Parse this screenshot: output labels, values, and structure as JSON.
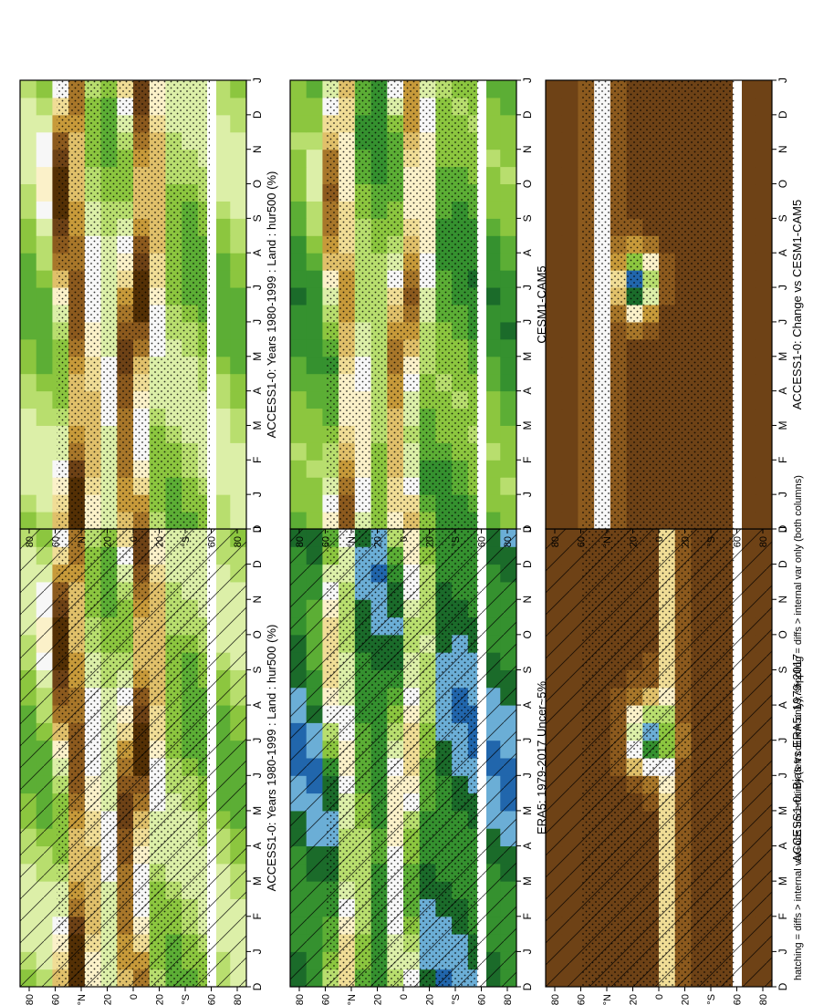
{
  "footer_note": "hatching = diffs > internal var+obs uncertainty (left column only); stippling = diffs > internal var only (both columns)",
  "month_labels": [
    "D",
    "J",
    "F",
    "M",
    "A",
    "M",
    "J",
    "J",
    "A",
    "S",
    "O",
    "N",
    "D",
    "J"
  ],
  "latitude_labels": [
    "80",
    "60",
    "°N",
    "20",
    "0",
    "20",
    "°S",
    "60",
    "80"
  ],
  "colorbars": {
    "absolute": {
      "labels": [
        "120",
        "110",
        "100",
        "90",
        "80",
        "70",
        "60",
        "50",
        "40",
        "30",
        "20"
      ],
      "colors": [
        "#2166ac",
        "#6baed6",
        "#1b6b2a",
        "#35912f",
        "#5cae35",
        "#8cc63f",
        "#b8de6e",
        "#dcefa8",
        "#f7f7f7",
        "#fbf1c9",
        "#f0dd96",
        "#e0c06a",
        "#c79a3a",
        "#a8772a",
        "#8c5a1e",
        "#6e4216",
        "#543005"
      ]
    },
    "difference": {
      "labels": [
        "10",
        "8",
        "6",
        "4",
        "2",
        "0",
        "-2",
        "-4",
        "-6",
        "-8",
        "-10"
      ],
      "colors": [
        "#2166ac",
        "#6baed6",
        "#1b6b2a",
        "#35912f",
        "#5cae35",
        "#8cc63f",
        "#b8de6e",
        "#dcefa8",
        "#f7f7f7",
        "#fbf1c9",
        "#f0dd96",
        "#e0c06a",
        "#c79a3a",
        "#a8772a",
        "#8c5a1e",
        "#6e4216",
        "#543005"
      ]
    }
  },
  "chart_data": [
    {
      "type": "heatmap",
      "title": "ACCESS1-0: Years 1980-1999 : Land : hur500 (%)",
      "x": "month",
      "y": "latitude",
      "colorbar": "absolute",
      "pattern": "hatch+stipple",
      "field": "abs_model"
    },
    {
      "type": "heatmap",
      "title": "ACCESS1-0: Years 1980-1999 : Land : hur500 (%)",
      "x": "month",
      "y": "latitude",
      "colorbar": "absolute",
      "pattern": "stipple",
      "field": "abs_model"
    },
    {
      "type": "heatmap",
      "title": "ERA5: 1979-2017 Uncer~5%",
      "x": "month",
      "y": "latitude",
      "colorbar": "absolute",
      "pattern": "hatch+stipple",
      "field": "abs_obs"
    },
    {
      "type": "heatmap",
      "title": "CESM1-CAM5",
      "x": "month",
      "y": "latitude",
      "colorbar": "absolute",
      "pattern": "stipple",
      "field": "abs_cesm"
    },
    {
      "type": "heatmap",
      "title": "ACCESS1-0: Bias vs ERA5: 1979-2017",
      "x": "month",
      "y": "latitude",
      "colorbar": "difference",
      "pattern": "hatch+stipple",
      "field": "bias"
    },
    {
      "type": "heatmap",
      "title": "ACCESS1-0: Change vs CESM1-CAM5",
      "x": "month",
      "y": "latitude",
      "colorbar": "difference",
      "pattern": "stipple",
      "field": "change"
    }
  ]
}
